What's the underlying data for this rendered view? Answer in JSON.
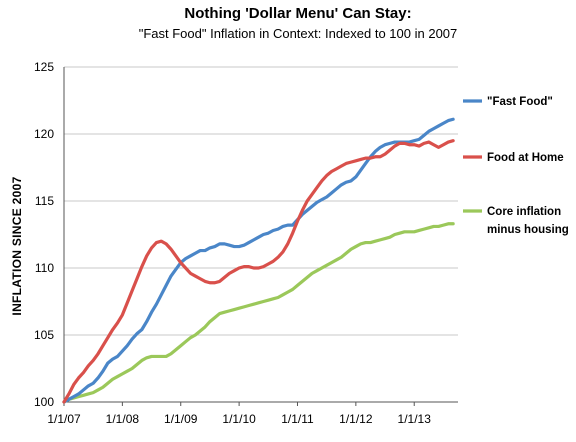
{
  "chart_data": {
    "type": "line",
    "title": "Nothing 'Dollar Menu' Can Stay:",
    "subtitle": "\"Fast Food\" Inflation in Context: Indexed to 100 in 2007",
    "xlabel": "",
    "ylabel": "Inflation since 2007",
    "ylim": [
      100,
      125
    ],
    "yticks": [
      "100",
      "105",
      "110",
      "115",
      "120",
      "125"
    ],
    "xlim": [
      0,
      81
    ],
    "xticks": [
      {
        "label": "1/1/07",
        "value": 0
      },
      {
        "label": "1/1/08",
        "value": 12
      },
      {
        "label": "1/1/09",
        "value": 24
      },
      {
        "label": "1/1/10",
        "value": 36
      },
      {
        "label": "1/1/11",
        "value": 48
      },
      {
        "label": "1/1/12",
        "value": 60
      },
      {
        "label": "1/1/13",
        "value": 72
      }
    ],
    "grid": "horizontal",
    "legend_position": "right",
    "series": [
      {
        "name": "\"Fast Food\"",
        "color": "#4a86c8",
        "x": [
          0,
          1,
          2,
          3,
          4,
          5,
          6,
          7,
          8,
          9,
          10,
          11,
          12,
          13,
          14,
          15,
          16,
          17,
          18,
          19,
          20,
          21,
          22,
          23,
          24,
          25,
          26,
          27,
          28,
          29,
          30,
          31,
          32,
          33,
          34,
          35,
          36,
          37,
          38,
          39,
          40,
          41,
          42,
          43,
          44,
          45,
          46,
          47,
          48,
          49,
          50,
          51,
          52,
          53,
          54,
          55,
          56,
          57,
          58,
          59,
          60,
          61,
          62,
          63,
          64,
          65,
          66,
          67,
          68,
          69,
          70,
          71,
          72,
          73,
          74,
          75,
          76,
          77,
          78,
          79,
          80
        ],
        "values": [
          100.0,
          100.2,
          100.4,
          100.6,
          100.9,
          101.2,
          101.4,
          101.8,
          102.3,
          102.9,
          103.2,
          103.4,
          103.8,
          104.2,
          104.7,
          105.1,
          105.4,
          106.0,
          106.7,
          107.3,
          108.0,
          108.7,
          109.4,
          109.9,
          110.4,
          110.7,
          110.9,
          111.1,
          111.3,
          111.3,
          111.5,
          111.6,
          111.8,
          111.8,
          111.7,
          111.6,
          111.6,
          111.7,
          111.9,
          112.1,
          112.3,
          112.5,
          112.6,
          112.8,
          112.9,
          113.1,
          113.2,
          113.2,
          113.6,
          114.0,
          114.3,
          114.6,
          114.9,
          115.1,
          115.3,
          115.6,
          115.9,
          116.2,
          116.4,
          116.5,
          116.8,
          117.3,
          117.8,
          118.3,
          118.7,
          119.0,
          119.2,
          119.3,
          119.4,
          119.4,
          119.4,
          119.4,
          119.5,
          119.6,
          119.9,
          120.2,
          120.4,
          120.6,
          120.8,
          121.0,
          121.1
        ]
      },
      {
        "name": "Food at Home",
        "color": "#d9504b",
        "x": [
          0,
          1,
          2,
          3,
          4,
          5,
          6,
          7,
          8,
          9,
          10,
          11,
          12,
          13,
          14,
          15,
          16,
          17,
          18,
          19,
          20,
          21,
          22,
          23,
          24,
          25,
          26,
          27,
          28,
          29,
          30,
          31,
          32,
          33,
          34,
          35,
          36,
          37,
          38,
          39,
          40,
          41,
          42,
          43,
          44,
          45,
          46,
          47,
          48,
          49,
          50,
          51,
          52,
          53,
          54,
          55,
          56,
          57,
          58,
          59,
          60,
          61,
          62,
          63,
          64,
          65,
          66,
          67,
          68,
          69,
          70,
          71,
          72,
          73,
          74,
          75,
          76,
          77,
          78,
          79,
          80
        ],
        "values": [
          100.0,
          100.6,
          101.3,
          101.8,
          102.2,
          102.7,
          103.1,
          103.6,
          104.2,
          104.8,
          105.4,
          105.9,
          106.5,
          107.4,
          108.3,
          109.2,
          110.1,
          110.9,
          111.5,
          111.9,
          112.0,
          111.8,
          111.4,
          110.9,
          110.4,
          110.0,
          109.6,
          109.4,
          109.2,
          109.0,
          108.9,
          108.9,
          109.0,
          109.3,
          109.6,
          109.8,
          110.0,
          110.1,
          110.1,
          110.0,
          110.0,
          110.1,
          110.3,
          110.5,
          110.8,
          111.2,
          111.8,
          112.6,
          113.5,
          114.3,
          115.0,
          115.5,
          116.0,
          116.5,
          116.9,
          117.2,
          117.4,
          117.6,
          117.8,
          117.9,
          118.0,
          118.1,
          118.2,
          118.2,
          118.3,
          118.3,
          118.5,
          118.8,
          119.1,
          119.3,
          119.3,
          119.2,
          119.2,
          119.1,
          119.3,
          119.4,
          119.2,
          119.0,
          119.2,
          119.4,
          119.5
        ]
      },
      {
        "name": "Core inflation minus housing",
        "name_lines": [
          "Core inflation",
          "minus housing"
        ],
        "color": "#9bc85a",
        "x": [
          0,
          1,
          2,
          3,
          4,
          5,
          6,
          7,
          8,
          9,
          10,
          11,
          12,
          13,
          14,
          15,
          16,
          17,
          18,
          19,
          20,
          21,
          22,
          23,
          24,
          25,
          26,
          27,
          28,
          29,
          30,
          31,
          32,
          33,
          34,
          35,
          36,
          37,
          38,
          39,
          40,
          41,
          42,
          43,
          44,
          45,
          46,
          47,
          48,
          49,
          50,
          51,
          52,
          53,
          54,
          55,
          56,
          57,
          58,
          59,
          60,
          61,
          62,
          63,
          64,
          65,
          66,
          67,
          68,
          69,
          70,
          71,
          72,
          73,
          74,
          75,
          76,
          77,
          78,
          79,
          80
        ],
        "values": [
          100.0,
          100.2,
          100.3,
          100.4,
          100.5,
          100.6,
          100.7,
          100.9,
          101.1,
          101.4,
          101.7,
          101.9,
          102.1,
          102.3,
          102.5,
          102.8,
          103.1,
          103.3,
          103.4,
          103.4,
          103.4,
          103.4,
          103.6,
          103.9,
          104.2,
          104.5,
          104.8,
          105.0,
          105.3,
          105.6,
          106.0,
          106.3,
          106.6,
          106.7,
          106.8,
          106.9,
          107.0,
          107.1,
          107.2,
          107.3,
          107.4,
          107.5,
          107.6,
          107.7,
          107.8,
          108.0,
          108.2,
          108.4,
          108.7,
          109.0,
          109.3,
          109.6,
          109.8,
          110.0,
          110.2,
          110.4,
          110.6,
          110.8,
          111.1,
          111.4,
          111.6,
          111.8,
          111.9,
          111.9,
          112.0,
          112.1,
          112.2,
          112.3,
          112.5,
          112.6,
          112.7,
          112.7,
          112.7,
          112.8,
          112.9,
          113.0,
          113.1,
          113.1,
          113.2,
          113.3,
          113.3
        ]
      }
    ]
  }
}
